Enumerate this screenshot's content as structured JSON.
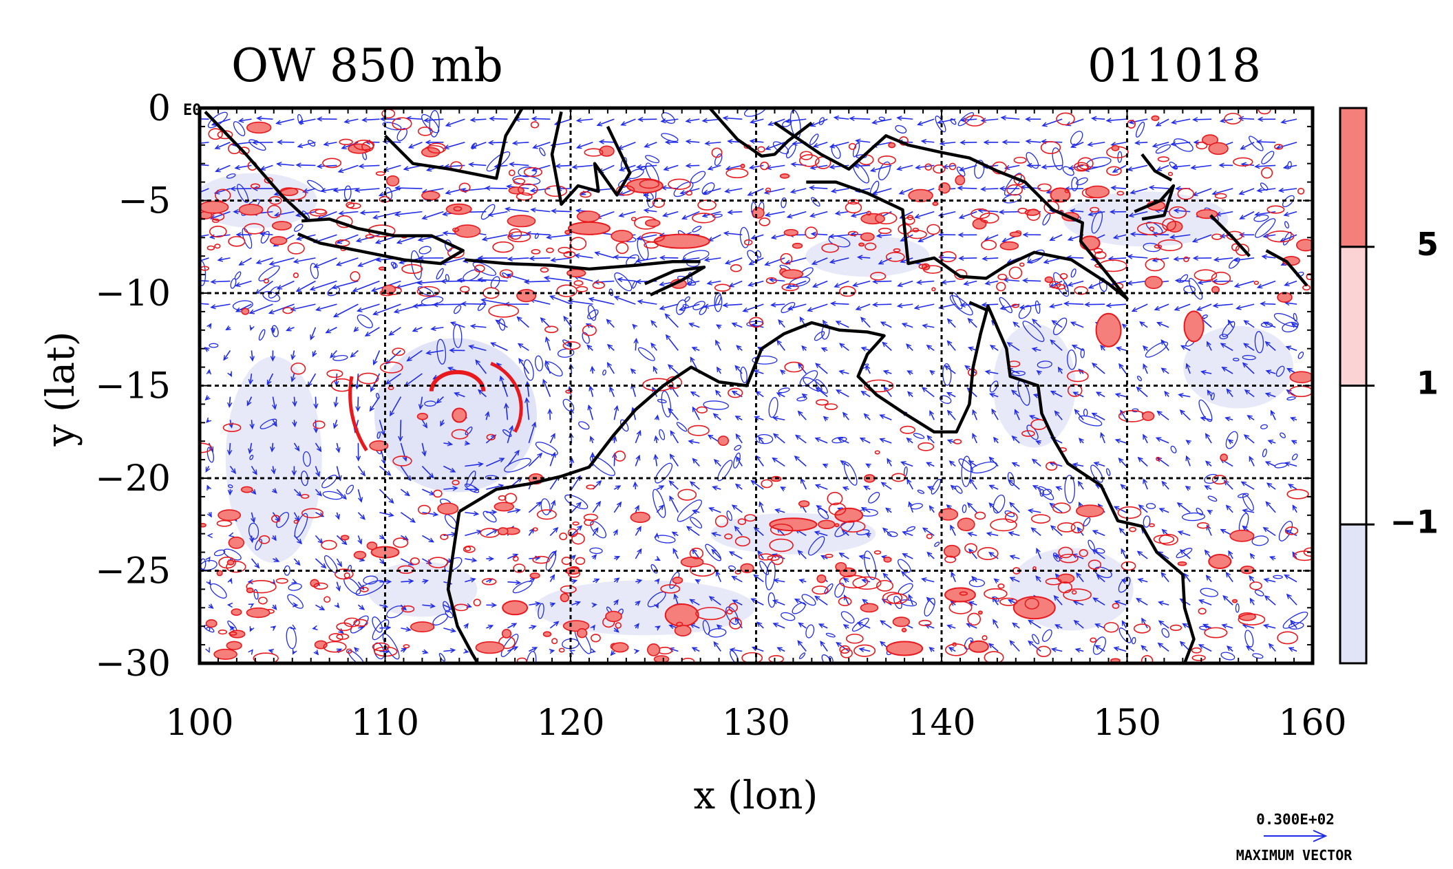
{
  "title_left": "OW 850 mb",
  "title_right": "011018",
  "corner_tag": "E0",
  "chart_data": {
    "type": "heatmap",
    "xlabel": "x (lon)",
    "ylabel": "y (lat)",
    "xlim": [
      100,
      160
    ],
    "ylim": [
      -30,
      0
    ],
    "xticks": [
      100,
      110,
      120,
      130,
      140,
      150,
      160
    ],
    "yticks": [
      0,
      -5,
      -10,
      -15,
      -20,
      -25,
      -30
    ],
    "xtick_labels": [
      "100",
      "110",
      "120",
      "130",
      "140",
      "150",
      "160"
    ],
    "ytick_labels": [
      "0",
      "−5",
      "−10",
      "−15",
      "−20",
      "−25",
      "−30"
    ],
    "grid": true,
    "colorbar": {
      "labels": [
        "5",
        "1",
        "−1"
      ],
      "levels": [
        5,
        1,
        -1
      ],
      "colors": [
        "#f57f7b",
        "#fbd3d4",
        "#ffffff",
        "#e1e3f6"
      ]
    },
    "vector_legend": {
      "value": "0.300E+02",
      "label": "MAXIMUM VECTOR"
    },
    "colors": {
      "vectors": "#1f2be8",
      "positive_contour": "#e8181c",
      "positive_fill": "#f57f7b",
      "negative_fill": "#e1e3f6",
      "coastline": "#000000"
    }
  }
}
